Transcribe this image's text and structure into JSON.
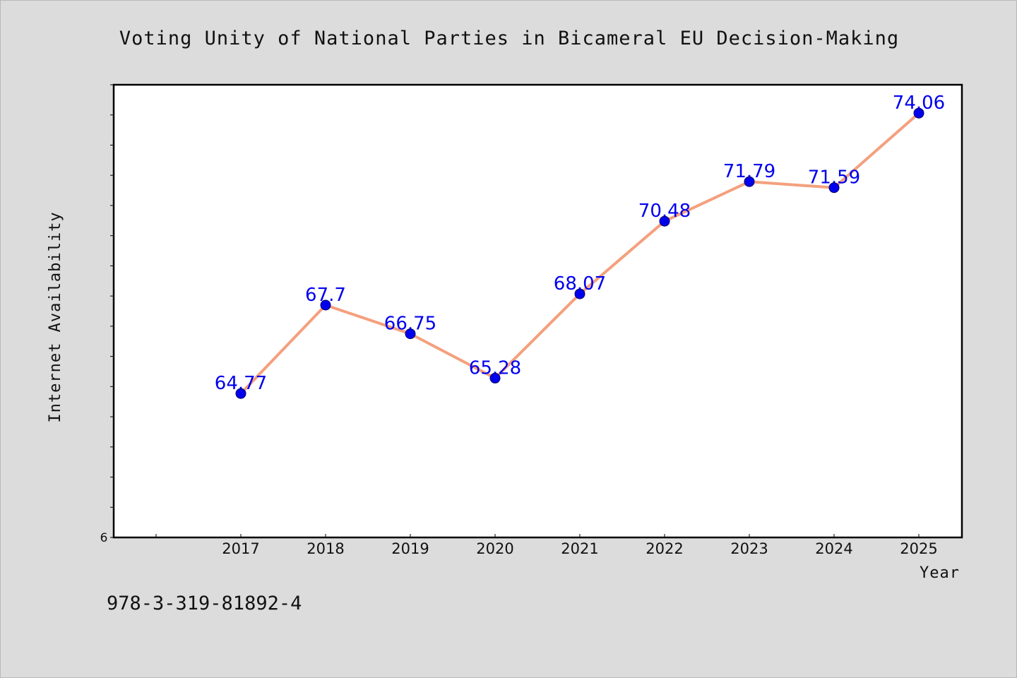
{
  "chart_data": {
    "type": "line",
    "title": "Voting Unity of National Parties in Bicameral EU Decision-Making",
    "xlabel": "Year",
    "ylabel": "Internet Availability",
    "x": [
      "2017",
      "2018",
      "2019",
      "2020",
      "2021",
      "2022",
      "2023",
      "2024",
      "2025"
    ],
    "values": [
      64.77,
      67.7,
      66.75,
      65.28,
      68.07,
      70.48,
      71.79,
      71.59,
      74.06
    ],
    "value_labels": [
      "64.77",
      "67.7",
      "66.75",
      "65.28",
      "68.07",
      "70.48",
      "71.79",
      "71.59",
      "74.06"
    ],
    "yticks": [
      "6"
    ],
    "ylim": [
      60,
      75
    ],
    "grid": false,
    "legend": "none",
    "colors": {
      "line": "#f4a07e",
      "marker": "#0000ee",
      "marker_edge": "#000066",
      "data_label": "#0000ee",
      "plot_background": "#ffffff",
      "figure_background": "#dcdcdc"
    }
  },
  "footer": {
    "text": "978-3-319-81892-4"
  }
}
